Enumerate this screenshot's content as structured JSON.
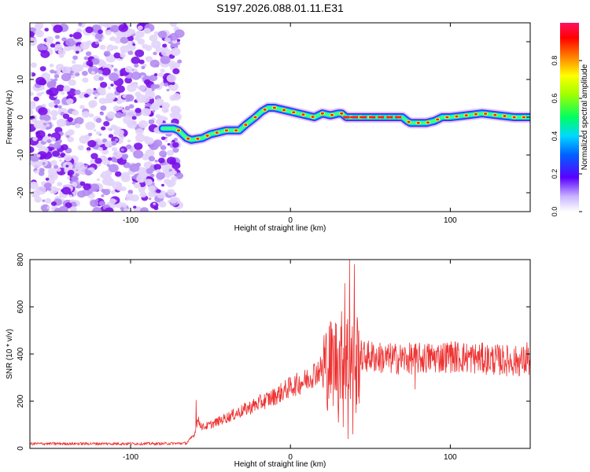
{
  "title": "S197.2026.088.01.11.E31",
  "chart_data": [
    {
      "type": "heatmap",
      "panel": "spectrogram",
      "xlabel": "Height of straight line (km)",
      "ylabel": "Frequency (Hz)",
      "xlim": [
        -163,
        150
      ],
      "ylim": [
        -25,
        25
      ],
      "xticks": [
        -100,
        0,
        100
      ],
      "xtick_labels": [
        "-100",
        "0",
        "100"
      ],
      "yticks": [
        -20,
        -10,
        0,
        10,
        20
      ],
      "ytick_labels": [
        "-20",
        "-10",
        "0",
        "10",
        "20"
      ],
      "noise_region_x": [
        -163,
        -72
      ],
      "signal_track": {
        "x": [
          -80,
          -73,
          -70,
          -65,
          -62,
          -55,
          -50,
          -45,
          -40,
          -35,
          -32,
          -28,
          -22,
          -18,
          -14,
          -10,
          -5,
          0,
          5,
          10,
          15,
          20,
          25,
          30,
          32,
          35,
          40,
          50,
          60,
          70,
          73,
          75,
          80,
          85,
          90,
          95,
          100,
          110,
          120,
          130,
          140,
          150
        ],
        "freq": [
          -3,
          -3,
          -3.5,
          -5.5,
          -6,
          -5.5,
          -4.5,
          -4,
          -3.5,
          -3.5,
          -3.5,
          -2,
          0,
          1.5,
          2.5,
          2.5,
          2,
          1.5,
          1,
          0.5,
          0,
          1,
          0.5,
          1,
          1,
          0,
          0,
          0,
          0,
          0,
          -1,
          -1.5,
          -1.5,
          -1.5,
          -1,
          0,
          0,
          0.5,
          1,
          0.5,
          0,
          0
        ]
      },
      "colorbar": {
        "label": "Normalized spectral amplitude",
        "range": [
          0,
          1
        ],
        "ticks": [
          0.0,
          0.2,
          0.4,
          0.6,
          0.8
        ],
        "tick_labels": [
          "0.0",
          "0.2",
          "0.4",
          "0.6",
          "0.8"
        ]
      }
    },
    {
      "type": "line",
      "panel": "snr",
      "xlabel": "Height of straight line (km)",
      "ylabel": "SNR (10 * v/v)",
      "xlim": [
        -163,
        150
      ],
      "ylim": [
        0,
        800
      ],
      "xticks": [
        -100,
        0,
        100
      ],
      "xtick_labels": [
        "-100",
        "0",
        "100"
      ],
      "yticks": [
        0,
        200,
        400,
        600,
        800
      ],
      "ytick_labels": [
        "0",
        "200",
        "400",
        "600",
        "800"
      ],
      "series": [
        {
          "name": "SNR",
          "color": "#ee3333",
          "envelope": {
            "x": [
              -163,
              -80,
              -65,
              -60,
              -58,
              -55,
              -50,
              -40,
              -30,
              -20,
              -10,
              0,
              10,
              15,
              20,
              25,
              30,
              35,
              40,
              44,
              50,
              60,
              80,
              100,
              120,
              140,
              150
            ],
            "y": [
              20,
              20,
              22,
              60,
              120,
              90,
              100,
              130,
              160,
              190,
              220,
              260,
              290,
              320,
              340,
              360,
              380,
              390,
              380,
              390,
              390,
              380,
              380,
              390,
              380,
              370,
              370
            ]
          },
          "spikes": [
            {
              "x": -59,
              "y": 205
            },
            {
              "x": 21,
              "y": 480
            },
            {
              "x": 30,
              "y": 760
            },
            {
              "x": 34,
              "y": 700
            },
            {
              "x": 37,
              "y": 800
            },
            {
              "x": 40,
              "y": 780
            },
            {
              "x": 42,
              "y": 540
            },
            {
              "x": 100,
              "y": 440
            },
            {
              "x": 148,
              "y": 450
            }
          ],
          "dips": [
            {
              "x": 30,
              "y": 110
            },
            {
              "x": 33,
              "y": 90
            },
            {
              "x": 36,
              "y": 40
            },
            {
              "x": 39,
              "y": 60
            },
            {
              "x": 41,
              "y": 150
            },
            {
              "x": 78,
              "y": 250
            }
          ]
        }
      ]
    }
  ],
  "colors": {
    "axis": "#000000",
    "noise": "#8a2be2",
    "line": "#ee3333"
  }
}
